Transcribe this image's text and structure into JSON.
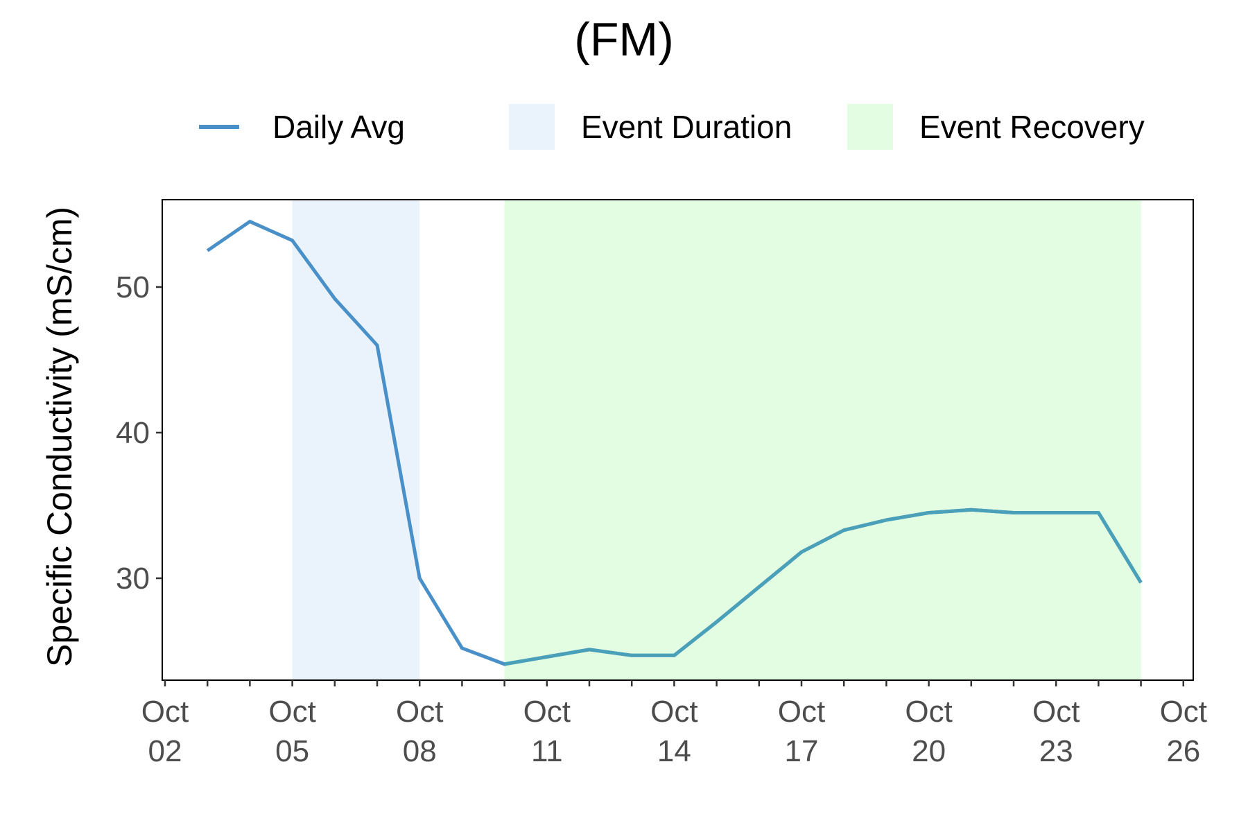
{
  "chart_data": {
    "type": "line",
    "title": "(FM)",
    "ylabel": "Specific Conductivity (mS/cm)",
    "xlabel": "",
    "x_tick_labels": [
      [
        "Oct",
        "02"
      ],
      [
        "Oct",
        "05"
      ],
      [
        "Oct",
        "08"
      ],
      [
        "Oct",
        "11"
      ],
      [
        "Oct",
        "14"
      ],
      [
        "Oct",
        "17"
      ],
      [
        "Oct",
        "20"
      ],
      [
        "Oct",
        "23"
      ],
      [
        "Oct",
        "26"
      ]
    ],
    "y_ticks": [
      30,
      40,
      50
    ],
    "xlim": [
      "Oct 02",
      "Oct 26"
    ],
    "ylim": [
      23,
      56
    ],
    "grid": false,
    "legend_position": "top",
    "legend": {
      "line": "Daily Avg",
      "duration": "Event Duration",
      "recovery": "Event Recovery"
    },
    "colors": {
      "line": "#4a90c8",
      "duration": "#eaf3fc",
      "recovery": "#e2fde2",
      "line_over_recovery": "#4aa0b8"
    },
    "bands": [
      {
        "name": "Event Duration",
        "start": "Oct 05",
        "end": "Oct 08"
      },
      {
        "name": "Event Recovery",
        "start": "Oct 10",
        "end": "Oct 25"
      }
    ],
    "series": [
      {
        "name": "Daily Avg",
        "x": [
          "Oct 03",
          "Oct 04",
          "Oct 05",
          "Oct 06",
          "Oct 07",
          "Oct 08",
          "Oct 09",
          "Oct 10",
          "Oct 11",
          "Oct 12",
          "Oct 13",
          "Oct 14",
          "Oct 15",
          "Oct 16",
          "Oct 17",
          "Oct 18",
          "Oct 19",
          "Oct 20",
          "Oct 21",
          "Oct 22",
          "Oct 23",
          "Oct 24",
          "Oct 25"
        ],
        "y": [
          52.5,
          54.5,
          53.2,
          49.2,
          46.0,
          30.0,
          25.2,
          24.1,
          24.6,
          25.1,
          24.7,
          24.7,
          27.0,
          29.4,
          31.8,
          33.3,
          34.0,
          34.5,
          34.7,
          34.5,
          34.5,
          34.5,
          29.7
        ]
      }
    ]
  }
}
